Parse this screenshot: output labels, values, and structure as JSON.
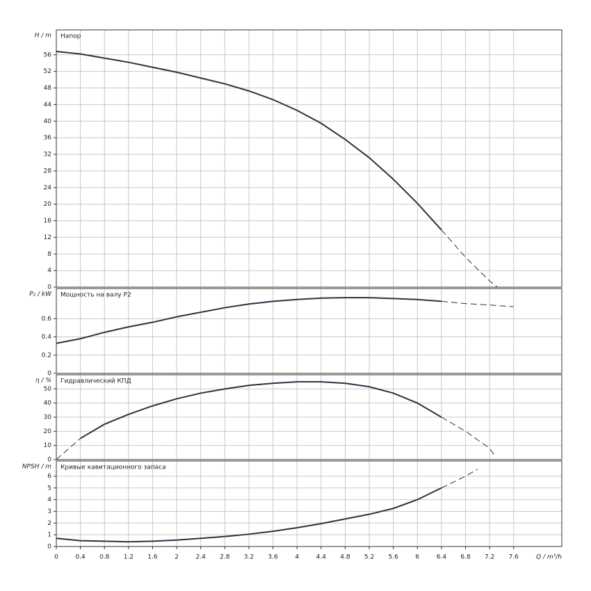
{
  "chart_data": [
    {
      "type": "line",
      "title": "Напор",
      "y_label": "H / m",
      "xlim": [
        0,
        8.4
      ],
      "ylim": [
        0,
        62
      ],
      "yticks": [
        0,
        4,
        8,
        12,
        16,
        20,
        24,
        28,
        32,
        36,
        40,
        44,
        48,
        52,
        56
      ],
      "grid": true,
      "series": [
        {
          "color": "#2b3142",
          "dashed": false,
          "x": [
            0,
            0.4,
            0.8,
            1.2,
            1.6,
            2.0,
            2.4,
            2.8,
            3.2,
            3.6,
            4.0,
            4.4,
            4.8,
            5.2,
            5.6,
            6.0,
            6.4
          ],
          "values": [
            56.8,
            56.2,
            55.2,
            54.2,
            53.0,
            51.8,
            50.4,
            49.0,
            47.3,
            45.2,
            42.6,
            39.5,
            35.6,
            31.2,
            26.0,
            20.2,
            13.8
          ]
        },
        {
          "color": "#2b3142",
          "dashed": true,
          "x": [
            6.4,
            6.8,
            7.2,
            7.33
          ],
          "values": [
            13.8,
            7.2,
            1.5,
            0
          ]
        }
      ]
    },
    {
      "type": "line",
      "title": "Мощность на валу P2",
      "y_label": "P₂ / kW",
      "xlim": [
        0,
        8.4
      ],
      "ylim": [
        0,
        0.93
      ],
      "yticks": [
        0,
        0.2,
        0.4,
        0.6
      ],
      "grid": true,
      "series": [
        {
          "color": "#2b3142",
          "dashed": false,
          "x": [
            0,
            0.4,
            0.8,
            1.2,
            1.6,
            2.0,
            2.4,
            2.8,
            3.2,
            3.6,
            4.0,
            4.4,
            4.8,
            5.2,
            5.6,
            6.0,
            6.4
          ],
          "values": [
            0.33,
            0.38,
            0.45,
            0.51,
            0.56,
            0.62,
            0.67,
            0.72,
            0.76,
            0.79,
            0.81,
            0.825,
            0.83,
            0.83,
            0.82,
            0.81,
            0.79
          ]
        },
        {
          "color": "#2b3142",
          "dashed": true,
          "x": [
            6.4,
            6.8,
            7.2,
            7.6
          ],
          "values": [
            0.79,
            0.765,
            0.75,
            0.73
          ]
        }
      ]
    },
    {
      "type": "line",
      "title": "Гидравлический КПД",
      "y_label": "η / %",
      "xlim": [
        0,
        8.4
      ],
      "ylim": [
        0,
        60
      ],
      "yticks": [
        0,
        10,
        20,
        30,
        40,
        50
      ],
      "grid": true,
      "series": [
        {
          "color": "#2b3142",
          "dashed": true,
          "x": [
            0,
            0.4
          ],
          "values": [
            0,
            15
          ]
        },
        {
          "color": "#2b3142",
          "dashed": false,
          "x": [
            0.4,
            0.8,
            1.2,
            1.6,
            2.0,
            2.4,
            2.8,
            3.2,
            3.6,
            4.0,
            4.4,
            4.8,
            5.2,
            5.6,
            6.0,
            6.4
          ],
          "values": [
            15,
            25,
            32,
            38,
            43,
            47,
            50,
            52.5,
            54,
            55,
            55,
            54,
            51.5,
            47,
            40,
            30
          ]
        },
        {
          "color": "#2b3142",
          "dashed": true,
          "x": [
            6.4,
            6.8,
            7.2,
            7.3
          ],
          "values": [
            30,
            20,
            8,
            2
          ]
        }
      ]
    },
    {
      "type": "line",
      "title": "Кривые кавитационного запаса",
      "y_label": "NPSH / m",
      "x_label": "Q / m³/h",
      "xlim": [
        0,
        8.4
      ],
      "ylim": [
        0,
        7.3
      ],
      "xticks": [
        0,
        0.4,
        0.8,
        1.2,
        1.6,
        2,
        2.4,
        2.8,
        3.2,
        3.6,
        4,
        4.4,
        4.8,
        5.2,
        5.6,
        6,
        6.4,
        6.8,
        7.2,
        7.6
      ],
      "yticks": [
        0,
        1,
        2,
        3,
        4,
        5,
        6
      ],
      "grid": true,
      "series": [
        {
          "color": "#2b3142",
          "dashed": false,
          "x": [
            0,
            0.4,
            0.8,
            1.2,
            1.6,
            2.0,
            2.4,
            2.8,
            3.2,
            3.6,
            4.0,
            4.4,
            4.8,
            5.2,
            5.6,
            6.0,
            6.4
          ],
          "values": [
            0.7,
            0.5,
            0.45,
            0.4,
            0.45,
            0.55,
            0.7,
            0.85,
            1.05,
            1.3,
            1.6,
            1.95,
            2.35,
            2.75,
            3.25,
            4.0,
            5.0
          ]
        },
        {
          "color": "#2b3142",
          "dashed": true,
          "x": [
            6.4,
            6.8,
            7.0
          ],
          "values": [
            5.0,
            6.0,
            6.6
          ]
        }
      ]
    }
  ]
}
